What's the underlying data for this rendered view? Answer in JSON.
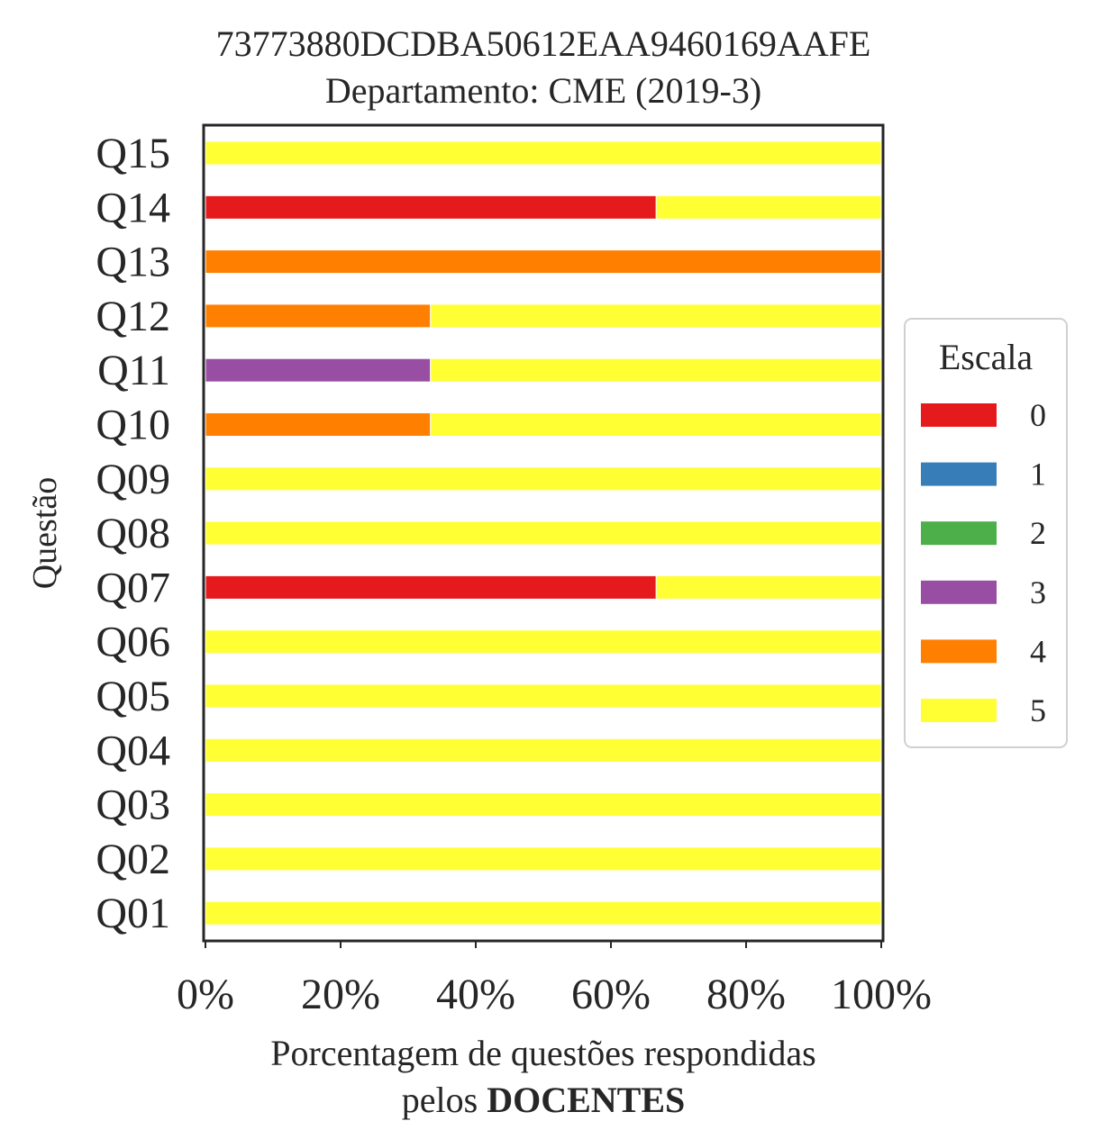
{
  "chart_data": {
    "type": "bar",
    "orientation": "horizontal",
    "stacked": true,
    "title": "73773880DCDBA50612EAA9460169AAFE",
    "subtitle": "Departamento: CME (2019-3)",
    "xlabel_line1": "Porcentagem de questões respondidas",
    "xlabel_line2_prefix": "pelos ",
    "xlabel_line2_bold": "DOCENTES",
    "ylabel": "Questão",
    "xlim": [
      0,
      100
    ],
    "xticks": [
      0,
      20,
      40,
      60,
      80,
      100
    ],
    "xtick_labels": [
      "0%",
      "20%",
      "40%",
      "60%",
      "80%",
      "100%"
    ],
    "grid": false,
    "legend": {
      "title": "Escala",
      "placement": "right",
      "entries": [
        {
          "label": "0",
          "color": "#e41a1c"
        },
        {
          "label": "1",
          "color": "#377eb8"
        },
        {
          "label": "2",
          "color": "#4daf4a"
        },
        {
          "label": "3",
          "color": "#984ea3"
        },
        {
          "label": "4",
          "color": "#ff7f00"
        },
        {
          "label": "5",
          "color": "#ffff33"
        }
      ]
    },
    "categories": [
      "Q01",
      "Q02",
      "Q03",
      "Q04",
      "Q05",
      "Q06",
      "Q07",
      "Q08",
      "Q09",
      "Q10",
      "Q11",
      "Q12",
      "Q13",
      "Q14",
      "Q15"
    ],
    "series": [
      {
        "name": "0",
        "color": "#e41a1c",
        "values": [
          0,
          0,
          0,
          0,
          0,
          0,
          66.7,
          0,
          0,
          0,
          0,
          0,
          0,
          66.7,
          0
        ]
      },
      {
        "name": "1",
        "color": "#377eb8",
        "values": [
          0,
          0,
          0,
          0,
          0,
          0,
          0,
          0,
          0,
          0,
          0,
          0,
          0,
          0,
          0
        ]
      },
      {
        "name": "2",
        "color": "#4daf4a",
        "values": [
          0,
          0,
          0,
          0,
          0,
          0,
          0,
          0,
          0,
          0,
          0,
          0,
          0,
          0,
          0
        ]
      },
      {
        "name": "3",
        "color": "#984ea3",
        "values": [
          0,
          0,
          0,
          0,
          0,
          0,
          0,
          0,
          0,
          0,
          33.3,
          0,
          0,
          0,
          0
        ]
      },
      {
        "name": "4",
        "color": "#ff7f00",
        "values": [
          0,
          0,
          0,
          0,
          0,
          0,
          0,
          0,
          0,
          33.3,
          0,
          33.3,
          100,
          0,
          0
        ]
      },
      {
        "name": "5",
        "color": "#ffff33",
        "values": [
          100,
          100,
          100,
          100,
          100,
          100,
          33.3,
          100,
          100,
          66.7,
          66.7,
          66.7,
          0,
          33.3,
          100
        ]
      }
    ]
  }
}
